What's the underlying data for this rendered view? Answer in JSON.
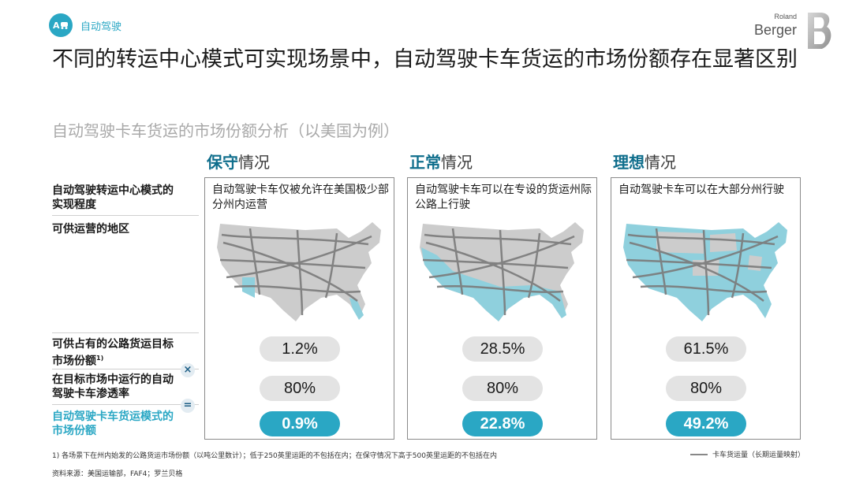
{
  "header": {
    "badge_label": "自动驾驶",
    "badge_icon": "autonomous-car-icon"
  },
  "logo": {
    "small": "Roland",
    "big": "Berger"
  },
  "title": "不同的转运中心模式可实现场景中，自动驾驶卡车货运的市场份额存在显著区别",
  "subtitle": "自动驾驶卡车货运的市场份额分析（以美国为例）",
  "rows": {
    "realization": "自动驾驶转运中心模式的实现程度",
    "regions": "可供运营的地区",
    "target_share": "可供占有的公路货运目标市场份额",
    "target_share_note": "1)",
    "penetration": "在目标市场中运行的自动驾驶卡车渗透率",
    "result": "自动驾驶卡车货运模式的市场份额"
  },
  "operators": {
    "multiply": "×",
    "equals": "="
  },
  "scenarios": [
    {
      "head_bold": "保守",
      "head_rest": "情况",
      "description": "自动驾驶卡车仅被允许在美国极少部分州内运营",
      "target_share": "1.2%",
      "penetration": "80%",
      "result": "0.9%"
    },
    {
      "head_bold": "正常",
      "head_rest": "情况",
      "description": "自动驾驶卡车可以在专设的货运州际公路上行驶",
      "target_share": "28.5%",
      "penetration": "80%",
      "result": "22.8%"
    },
    {
      "head_bold": "理想",
      "head_rest": "情况",
      "description": "自动驾驶卡车可以在大部分州行驶",
      "target_share": "61.5%",
      "penetration": "80%",
      "result": "49.2%"
    }
  ],
  "footnote": "1) 各场景下在州内始发的公路货运市场份额（以吨公里数计）；低于250英里运距的不包括在内；在保守情况下高于500英里运距的不包括在内",
  "source": "资料来源：美国运输部，FAF4；罗兰贝格",
  "legend": "卡车货运量（长期运量映射）",
  "colors": {
    "accent": "#2aa7c4",
    "heading_dark": "#0f6e8c",
    "map_land": "#cccccc",
    "map_highlight": "#8fd0dd",
    "routes": "#7a7a7a"
  }
}
